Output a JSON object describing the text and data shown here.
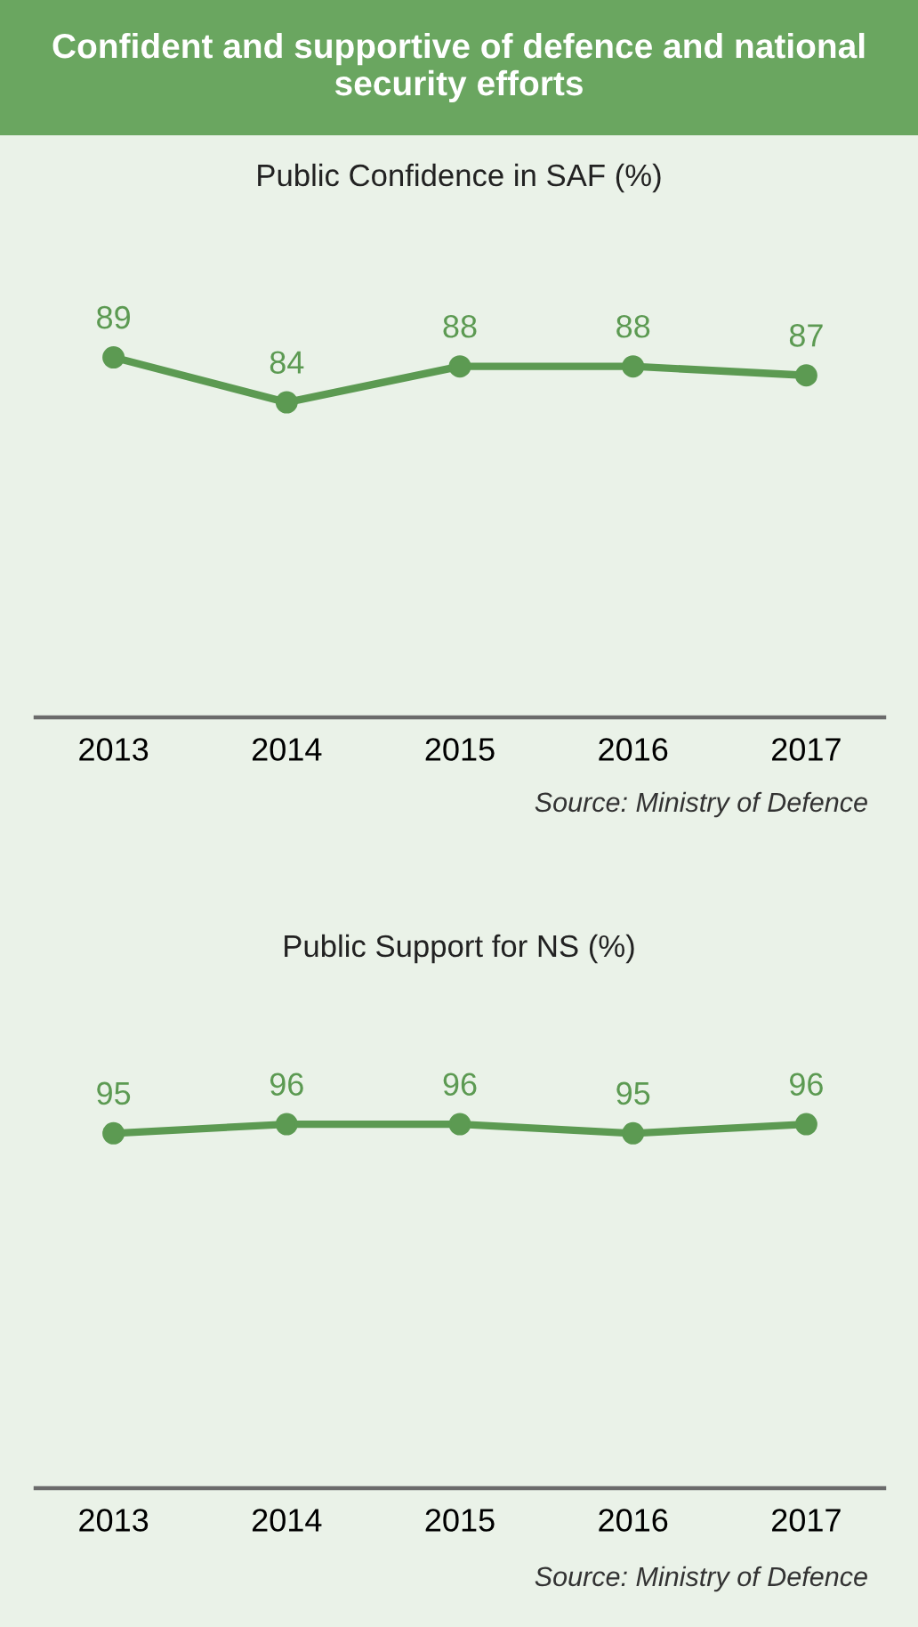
{
  "chart_data": [
    {
      "type": "line",
      "title": "Confident and supportive of defence and national security efforts",
      "subtitle": "Public Confidence in SAF (%)",
      "categories": [
        "2013",
        "2014",
        "2015",
        "2016",
        "2017"
      ],
      "series": [
        {
          "color": "#5c9a52",
          "values": [
            89,
            84,
            88,
            88,
            87
          ]
        }
      ],
      "marker": "circle",
      "line_style": "solid",
      "data_labels": true,
      "tick_labels": "x",
      "annotations": [
        "Source: Ministry of Defence"
      ]
    },
    {
      "type": "line",
      "title": "Public Support for NS (%)",
      "categories": [
        "2013",
        "2014",
        "2015",
        "2016",
        "2017"
      ],
      "series": [
        {
          "color": "#5c9a52",
          "values": [
            95,
            96,
            96,
            95,
            96
          ]
        }
      ],
      "marker": "circle",
      "line_style": "solid",
      "data_labels": true,
      "tick_labels": "x",
      "annotations": [
        "Source: Ministry of Defence"
      ]
    }
  ]
}
